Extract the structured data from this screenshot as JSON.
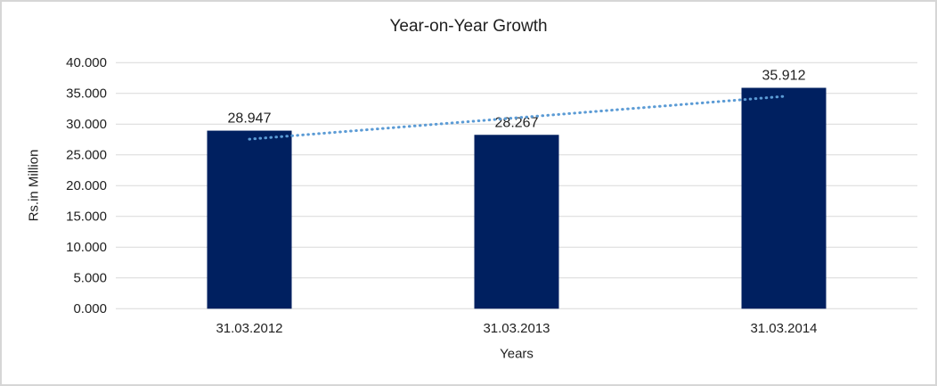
{
  "chart_data": {
    "type": "bar",
    "title": "Year-on-Year Growth",
    "xlabel": "Years",
    "ylabel": "Rs.in Million",
    "categories": [
      "31.03.2012",
      "31.03.2013",
      "31.03.2014"
    ],
    "values": [
      28.947,
      28.267,
      35.912
    ],
    "data_labels": [
      "28.947",
      "28.267",
      "35.912"
    ],
    "ylim": [
      0,
      40
    ],
    "ytick_step": 5,
    "ytick_labels": [
      "0.000",
      "5.000",
      "10.000",
      "15.000",
      "20.000",
      "25.000",
      "30.000",
      "35.000",
      "40.000"
    ],
    "grid": true,
    "legend": "none",
    "bar_color": "#002060",
    "trendline": {
      "style": "dotted",
      "color": "#5B9BD5",
      "start_value": 27.56,
      "end_value": 34.52
    }
  },
  "colors": {
    "gridline": "#d9d9d9",
    "text": "#1f1f1f",
    "background": "#ffffff",
    "frame_border": "#d6d6d6"
  }
}
